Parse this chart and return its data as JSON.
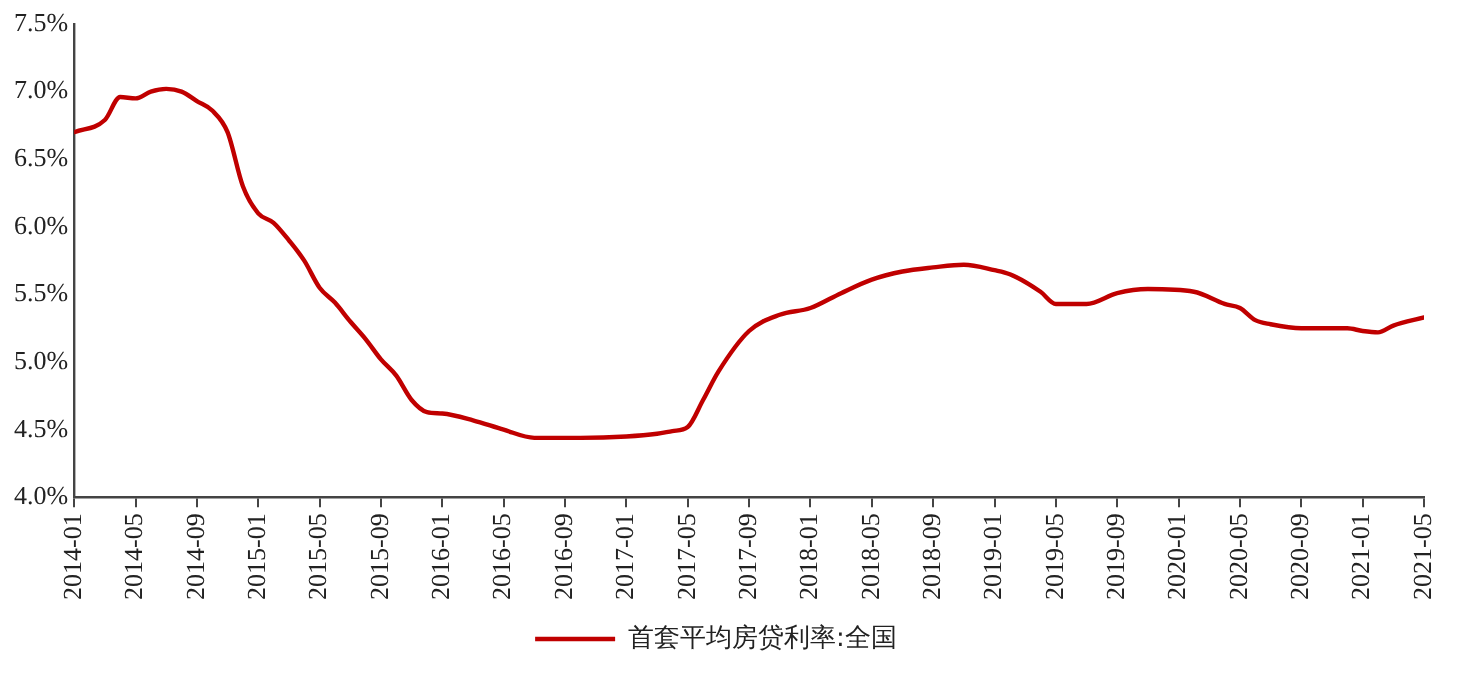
{
  "chart_data": {
    "type": "line",
    "x": [
      "2014-01",
      "2014-03",
      "2014-04",
      "2014-05",
      "2014-06",
      "2014-07",
      "2014-08",
      "2014-09",
      "2014-10",
      "2014-11",
      "2014-12",
      "2015-01",
      "2015-02",
      "2015-03",
      "2015-04",
      "2015-05",
      "2015-06",
      "2015-07",
      "2015-08",
      "2015-09",
      "2015-10",
      "2015-11",
      "2015-12",
      "2016-01",
      "2016-03",
      "2016-05",
      "2016-07",
      "2016-10",
      "2017-01",
      "2017-03",
      "2017-04",
      "2017-05",
      "2017-06",
      "2017-07",
      "2017-09",
      "2017-11",
      "2018-01",
      "2018-03",
      "2018-05",
      "2018-07",
      "2018-09",
      "2018-11",
      "2019-01",
      "2019-02",
      "2019-04",
      "2019-05",
      "2019-07",
      "2019-09",
      "2019-11",
      "2020-02",
      "2020-04",
      "2020-05",
      "2020-06",
      "2020-07",
      "2020-09",
      "2020-12",
      "2021-01",
      "2021-02",
      "2021-03",
      "2021-05"
    ],
    "series": [
      {
        "name": "首套平均房贷利率:全国",
        "color": "#c00000",
        "values": [
          6.7,
          6.79,
          6.96,
          6.95,
          7.0,
          7.02,
          7.0,
          6.93,
          6.86,
          6.7,
          6.3,
          6.1,
          6.03,
          5.9,
          5.75,
          5.55,
          5.44,
          5.3,
          5.17,
          5.02,
          4.9,
          4.72,
          4.63,
          4.62,
          4.57,
          4.5,
          4.44,
          4.44,
          4.45,
          4.47,
          4.49,
          4.52,
          4.72,
          4.93,
          5.23,
          5.35,
          5.4,
          5.51,
          5.61,
          5.67,
          5.7,
          5.72,
          5.68,
          5.65,
          5.52,
          5.43,
          5.43,
          5.51,
          5.54,
          5.52,
          5.43,
          5.4,
          5.31,
          5.28,
          5.25,
          5.25,
          5.23,
          5.22,
          5.27,
          5.33
        ]
      }
    ],
    "xlim": [
      "2014-01",
      "2021-05"
    ],
    "xticks": [
      "2014-01",
      "2014-05",
      "2014-09",
      "2015-01",
      "2015-05",
      "2015-09",
      "2016-01",
      "2016-05",
      "2016-09",
      "2017-01",
      "2017-05",
      "2017-09",
      "2018-01",
      "2018-05",
      "2018-09",
      "2019-01",
      "2019-05",
      "2019-09",
      "2020-01",
      "2020-05",
      "2020-09",
      "2021-01",
      "2021-05"
    ],
    "ylim": [
      4.0,
      7.5
    ],
    "yticks": [
      {
        "value": 4.0,
        "label": "4.0%"
      },
      {
        "value": 4.5,
        "label": "4.5%"
      },
      {
        "value": 5.0,
        "label": "5.0%"
      },
      {
        "value": 5.5,
        "label": "5.5%"
      },
      {
        "value": 6.0,
        "label": "6.0%"
      },
      {
        "value": 6.5,
        "label": "6.5%"
      },
      {
        "value": 7.0,
        "label": "7.0%"
      },
      {
        "value": 7.5,
        "label": "7.5%"
      }
    ],
    "grid": false,
    "legend": "bottom",
    "marker": "none",
    "line_style": "solid"
  }
}
